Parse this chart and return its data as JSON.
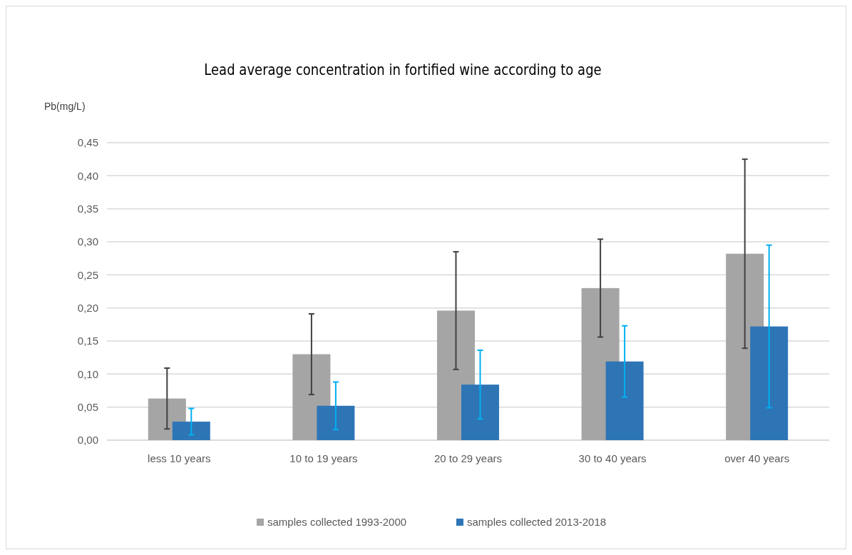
{
  "chart_data": {
    "type": "bar",
    "title": "Lead average concentration in fortified wine according to age",
    "ylabel": "Pb(mg/L)",
    "categories": [
      "less 10 years",
      "10 to 19 years",
      "20 to 29 years",
      "30 to 40 years",
      "over 40 years"
    ],
    "series": [
      {
        "name": "samples collected 1993-2000",
        "color": "#a5a5a5",
        "values": [
          0.063,
          0.13,
          0.196,
          0.23,
          0.282
        ],
        "errors": [
          0.046,
          0.061,
          0.089,
          0.074,
          0.143
        ]
      },
      {
        "name": "samples collected 2013-2018",
        "color": "#2e75b6",
        "values": [
          0.028,
          0.052,
          0.084,
          0.119,
          0.172
        ],
        "errors": [
          0.02,
          0.036,
          0.052,
          0.054,
          0.123
        ]
      }
    ],
    "ylim": [
      0,
      0.45
    ],
    "yticks": [
      {
        "value": 0,
        "label": "0,00"
      },
      {
        "value": 0.05,
        "label": "0,05"
      },
      {
        "value": 0.1,
        "label": "0,10"
      },
      {
        "value": 0.15,
        "label": "0,15"
      },
      {
        "value": 0.2,
        "label": "0,20"
      },
      {
        "value": 0.25,
        "label": "0,25"
      },
      {
        "value": 0.3,
        "label": "0,30"
      },
      {
        "value": 0.35,
        "label": "0,35"
      },
      {
        "value": 0.4,
        "label": "0,40"
      },
      {
        "value": 0.45,
        "label": "0,45"
      }
    ],
    "grid": "y",
    "legend": "bottom"
  }
}
